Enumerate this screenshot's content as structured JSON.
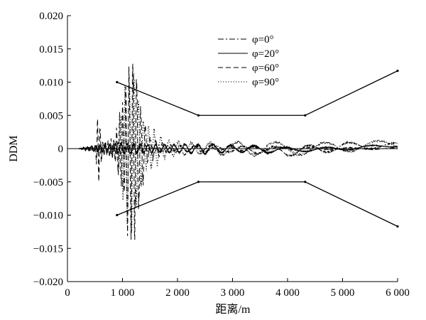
{
  "chart_data": {
    "type": "line",
    "title": "",
    "xlabel": "距离/m",
    "ylabel": "DDM",
    "xlim": [
      0,
      6000
    ],
    "ylim": [
      -0.02,
      0.02
    ],
    "x_ticks": [
      0,
      1000,
      2000,
      3000,
      4000,
      5000,
      6000
    ],
    "x_tick_labels": [
      "0",
      "1 000",
      "2 000",
      "3 000",
      "4 000",
      "5 000",
      "6 000"
    ],
    "y_ticks": [
      0.02,
      0.015,
      0.01,
      0.005,
      0,
      -0.005,
      -0.01,
      -0.015,
      -0.02
    ],
    "y_tick_labels": [
      "0.020",
      "0.015",
      "0.010",
      "0.005",
      "0",
      "−0.005",
      "−0.010",
      "−0.015",
      "−0.020"
    ],
    "legend_position": "top-center",
    "legend": [
      {
        "name": "φ=0°",
        "style": "dashdot"
      },
      {
        "name": "φ=20°",
        "style": "solid"
      },
      {
        "name": "φ=60°",
        "style": "dashed"
      },
      {
        "name": "φ=90°",
        "style": "dotted"
      }
    ],
    "limits": [
      {
        "name": "upper-limit",
        "x": [
          900,
          2380,
          4320,
          6000
        ],
        "y": [
          0.01,
          0.005,
          0.005,
          0.0117
        ]
      },
      {
        "name": "lower-limit",
        "x": [
          900,
          2380,
          4320,
          6000
        ],
        "y": [
          -0.01,
          -0.005,
          -0.005,
          -0.0117
        ]
      }
    ],
    "series": [
      {
        "name": "φ=0°",
        "style": "dashdot",
        "seed": 3,
        "env": [
          [
            200,
            0
          ],
          [
            300,
            0.0001
          ],
          [
            600,
            0.0004
          ],
          [
            800,
            0.0008
          ],
          [
            1000,
            0.0008
          ],
          [
            1400,
            0.0006
          ],
          [
            1800,
            0.0004
          ],
          [
            3000,
            0.0004
          ],
          [
            4000,
            0.0007
          ],
          [
            5000,
            0.0006
          ],
          [
            6000,
            0.0004
          ]
        ],
        "trend": [
          [
            200,
            0
          ],
          [
            2500,
            0
          ],
          [
            3500,
            -0.0002
          ],
          [
            4000,
            -0.0004
          ],
          [
            4500,
            -0.0001
          ],
          [
            5000,
            0.0003
          ],
          [
            5500,
            0.0005
          ],
          [
            6000,
            0.0004
          ]
        ],
        "period": [
          [
            200,
            60
          ],
          [
            1500,
            110
          ],
          [
            3000,
            500
          ],
          [
            6000,
            900
          ]
        ]
      },
      {
        "name": "φ=20°",
        "style": "solid",
        "seed": 7,
        "env": [
          [
            200,
            0
          ],
          [
            300,
            0.0002
          ],
          [
            600,
            0.0005
          ],
          [
            800,
            0.0005
          ],
          [
            1000,
            0.0008
          ],
          [
            1400,
            0.0006
          ],
          [
            2000,
            0.0006
          ],
          [
            2500,
            0.0007
          ],
          [
            3000,
            0.0005
          ],
          [
            3600,
            0.0005
          ],
          [
            4200,
            0.0003
          ],
          [
            6000,
            0.0002
          ]
        ],
        "trend": [
          [
            200,
            0
          ],
          [
            3000,
            0
          ],
          [
            4000,
            -0.0002
          ],
          [
            5000,
            0
          ],
          [
            6000,
            0.0005
          ]
        ],
        "period": [
          [
            200,
            60
          ],
          [
            1500,
            140
          ],
          [
            2000,
            190
          ],
          [
            3000,
            360
          ],
          [
            4000,
            700
          ],
          [
            6000,
            900
          ]
        ]
      },
      {
        "name": "φ=60°",
        "style": "dashed",
        "seed": 11,
        "env": [
          [
            200,
            0
          ],
          [
            500,
            0.0003
          ],
          [
            560,
            0.0052
          ],
          [
            640,
            0.0008
          ],
          [
            850,
            0.0015
          ],
          [
            1000,
            0.006
          ],
          [
            1100,
            0.012
          ],
          [
            1250,
            0.011
          ],
          [
            1350,
            0.006
          ],
          [
            1450,
            0.002
          ],
          [
            1800,
            0.0005
          ],
          [
            3000,
            0.0003
          ],
          [
            6000,
            0.0001
          ]
        ],
        "trend": [
          [
            200,
            0
          ],
          [
            6000,
            0
          ]
        ],
        "period": [
          [
            200,
            40
          ],
          [
            1000,
            55
          ],
          [
            1500,
            90
          ],
          [
            3000,
            400
          ],
          [
            6000,
            900
          ]
        ]
      },
      {
        "name": "φ=90°",
        "style": "dotted",
        "seed": 19,
        "env": [
          [
            200,
            0
          ],
          [
            600,
            0.0006
          ],
          [
            900,
            0.0006
          ],
          [
            1050,
            0.009
          ],
          [
            1150,
            0.012
          ],
          [
            1250,
            0.008
          ],
          [
            1400,
            0.0035
          ],
          [
            1600,
            0.0025
          ],
          [
            1800,
            0.0012
          ],
          [
            2300,
            0.0008
          ],
          [
            3000,
            0.001
          ],
          [
            3500,
            0.001
          ],
          [
            4500,
            0.0009
          ],
          [
            6000,
            0.0005
          ]
        ],
        "trend": [
          [
            200,
            0
          ],
          [
            4500,
            0
          ],
          [
            5000,
            0.0002
          ],
          [
            5500,
            0.0005
          ],
          [
            6000,
            0.0007
          ]
        ],
        "period": [
          [
            200,
            45
          ],
          [
            1500,
            95
          ],
          [
            2000,
            190
          ],
          [
            3000,
            550
          ],
          [
            4000,
            900
          ],
          [
            6000,
            1000
          ]
        ]
      }
    ]
  }
}
